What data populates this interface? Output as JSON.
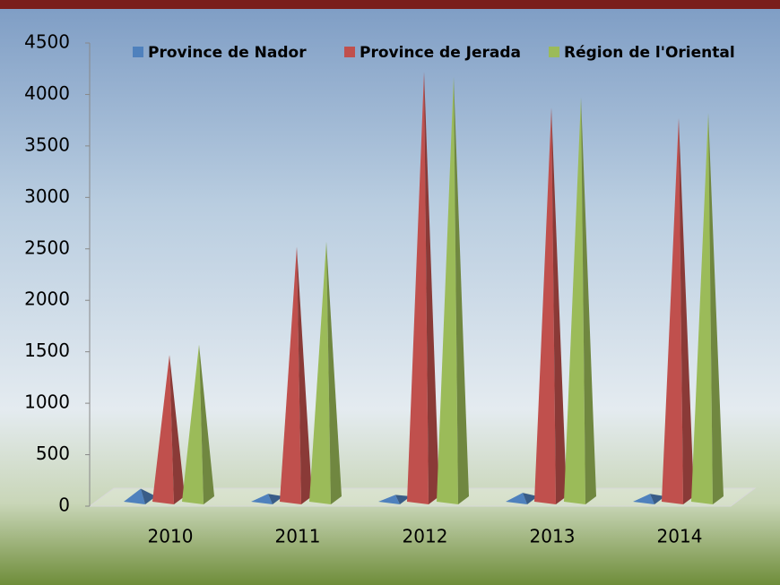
{
  "chart_data": {
    "type": "pyramid",
    "categories": [
      "2010",
      "2011",
      "2012",
      "2013",
      "2014"
    ],
    "series": [
      {
        "name": "Province de Nador",
        "color": "#4f81bd",
        "values": [
          100,
          50,
          40,
          60,
          50
        ]
      },
      {
        "name": "Province de Jerada",
        "color": "#c0504d",
        "values": [
          1400,
          2450,
          4150,
          3800,
          3700
        ]
      },
      {
        "name": "Région de l'Oriental",
        "color": "#9bbb59",
        "values": [
          1500,
          2500,
          4100,
          3900,
          3750
        ]
      }
    ],
    "ylim": [
      0,
      4500
    ],
    "yticks": [
      0,
      500,
      1000,
      1500,
      2000,
      2500,
      3000,
      3500,
      4000,
      4500
    ],
    "legend": "top"
  }
}
